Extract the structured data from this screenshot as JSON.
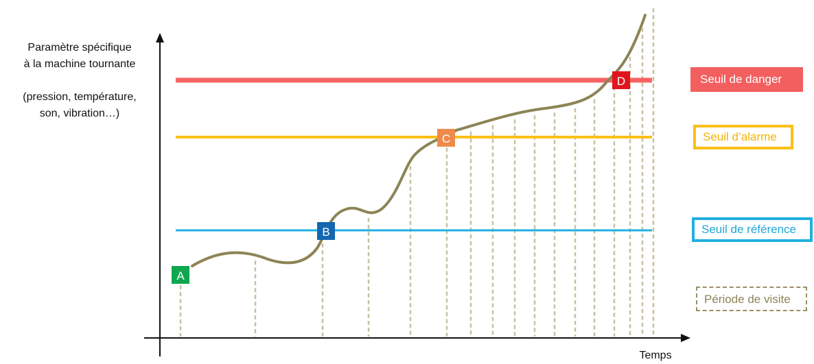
{
  "y_axis_label": [
    "Paramètre spécifique",
    "à la machine tournante",
    "",
    "(pression, température,",
    "son, vibration…)"
  ],
  "x_axis_label": "Temps",
  "thresholds": {
    "danger": {
      "label": "Seuil de danger",
      "color": "#f76363"
    },
    "alarme": {
      "label": "Seuil d’alarme",
      "color": "#fbbf17"
    },
    "reference": {
      "label": "Seuil de référence",
      "color": "#1fb0e2"
    }
  },
  "visit_period_label": "Période de visite",
  "curve_color": "#8c8456",
  "points": [
    {
      "label": "A",
      "color": "#10a64f"
    },
    {
      "label": "B",
      "color": "#1466b0"
    },
    {
      "label": "C",
      "color": "#f08a4b"
    },
    {
      "label": "D",
      "color": "#e0141e"
    }
  ]
}
